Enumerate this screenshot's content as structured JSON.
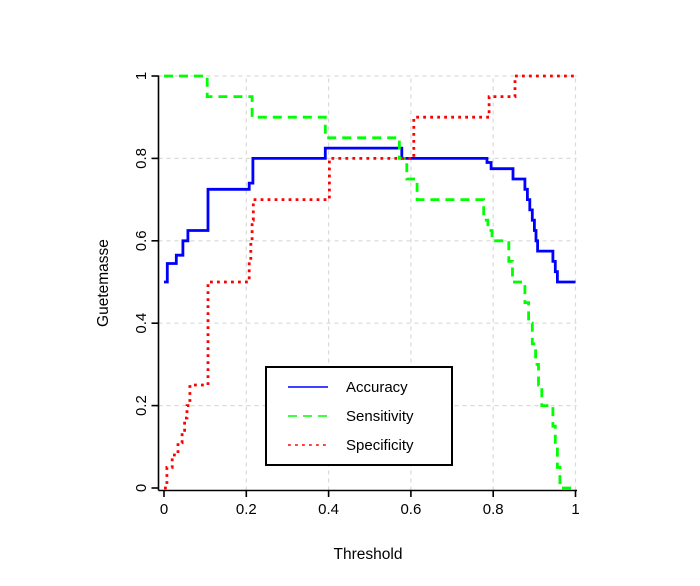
{
  "figure": {
    "background": "#ffffff"
  },
  "chart_data": {
    "type": "line",
    "subtype": "step-functions",
    "title": "",
    "xlabel": "Threshold",
    "ylabel": "Guetemasse",
    "xlim": [
      0,
      1
    ],
    "ylim": [
      0,
      1
    ],
    "x_tick_values": [
      0,
      0.2,
      0.4,
      0.6,
      0.8,
      1
    ],
    "x_tick_labels": [
      "0",
      "0.2",
      "0.4",
      "0.6",
      "0.8",
      "1"
    ],
    "y_tick_values": [
      0,
      0.2,
      0.4,
      0.6,
      0.8,
      1
    ],
    "y_tick_labels": [
      "0",
      "0.2",
      "0.4",
      "0.6",
      "0.8",
      "1"
    ],
    "grid": {
      "show": true,
      "style": "dashed",
      "color": "#d9d9d9"
    },
    "axis_color": "#000000",
    "legend": {
      "position": "inside-bottom-center",
      "border_color": "#000000",
      "items": [
        {
          "label": "Accuracy",
          "color": "#0000ff",
          "linestyle": "solid"
        },
        {
          "label": "Sensitivity",
          "color": "#00ff00",
          "linestyle": "dashed"
        },
        {
          "label": "Specificity",
          "color": "#ff0000",
          "linestyle": "dotted"
        }
      ]
    },
    "series": [
      {
        "name": "Accuracy",
        "color": "#0000ff",
        "linestyle": "solid",
        "steps": [
          [
            0.0,
            0.5
          ],
          [
            0.008,
            0.545
          ],
          [
            0.03,
            0.565
          ],
          [
            0.046,
            0.6
          ],
          [
            0.058,
            0.625
          ],
          [
            0.107,
            0.725
          ],
          [
            0.207,
            0.74
          ],
          [
            0.216,
            0.8
          ],
          [
            0.392,
            0.825
          ],
          [
            0.578,
            0.8
          ],
          [
            0.785,
            0.79
          ],
          [
            0.795,
            0.775
          ],
          [
            0.848,
            0.75
          ],
          [
            0.877,
            0.725
          ],
          [
            0.883,
            0.7
          ],
          [
            0.889,
            0.675
          ],
          [
            0.895,
            0.65
          ],
          [
            0.9,
            0.625
          ],
          [
            0.904,
            0.6
          ],
          [
            0.908,
            0.575
          ],
          [
            0.945,
            0.55
          ],
          [
            0.951,
            0.525
          ],
          [
            0.956,
            0.5
          ]
        ]
      },
      {
        "name": "Sensitivity",
        "color": "#00ff00",
        "linestyle": "dashed",
        "steps": [
          [
            0.0,
            1.0
          ],
          [
            0.105,
            0.95
          ],
          [
            0.214,
            0.9
          ],
          [
            0.392,
            0.85
          ],
          [
            0.572,
            0.8
          ],
          [
            0.59,
            0.75
          ],
          [
            0.615,
            0.7
          ],
          [
            0.777,
            0.65
          ],
          [
            0.787,
            0.625
          ],
          [
            0.797,
            0.6
          ],
          [
            0.838,
            0.55
          ],
          [
            0.847,
            0.5
          ],
          [
            0.877,
            0.45
          ],
          [
            0.886,
            0.4
          ],
          [
            0.895,
            0.35
          ],
          [
            0.903,
            0.3
          ],
          [
            0.91,
            0.25
          ],
          [
            0.918,
            0.2
          ],
          [
            0.945,
            0.15
          ],
          [
            0.951,
            0.1
          ],
          [
            0.956,
            0.05
          ],
          [
            0.962,
            0.0
          ]
        ]
      },
      {
        "name": "Specificity",
        "color": "#ff0000",
        "linestyle": "dotted",
        "steps": [
          [
            0.0,
            0.0
          ],
          [
            0.007,
            0.05
          ],
          [
            0.02,
            0.08
          ],
          [
            0.034,
            0.11
          ],
          [
            0.044,
            0.14
          ],
          [
            0.05,
            0.17
          ],
          [
            0.056,
            0.2
          ],
          [
            0.063,
            0.25
          ],
          [
            0.107,
            0.5
          ],
          [
            0.207,
            0.55
          ],
          [
            0.211,
            0.6
          ],
          [
            0.214,
            0.65
          ],
          [
            0.217,
            0.7
          ],
          [
            0.402,
            0.8
          ],
          [
            0.607,
            0.9
          ],
          [
            0.79,
            0.95
          ],
          [
            0.853,
            1.0
          ]
        ]
      }
    ]
  }
}
